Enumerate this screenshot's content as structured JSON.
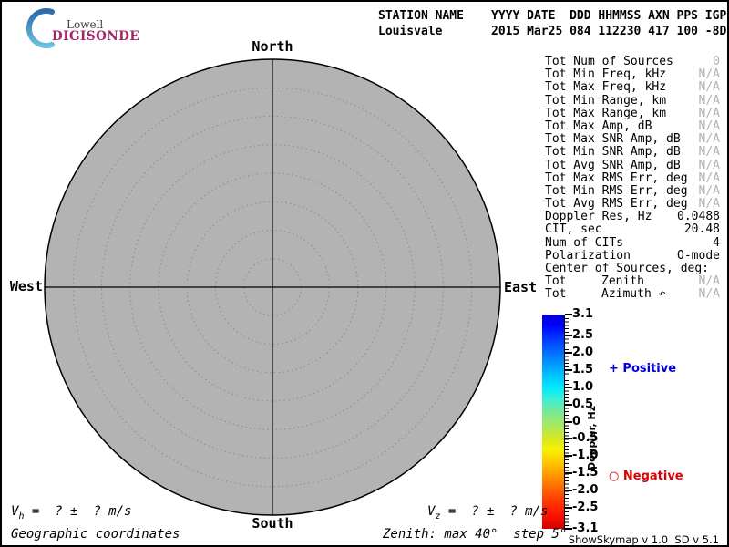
{
  "logo": {
    "line1": "Lowell",
    "line2": "DIGISONDE",
    "digisonde_color": "#a32465",
    "crescent_color_top": "#2b6cab",
    "crescent_color_bottom": "#6cc0dc"
  },
  "header": {
    "labels": {
      "station": "STATION NAME",
      "fields": "YYYY DATE  DDD HHMMSS AXN PPS IGP"
    },
    "values": {
      "station": "Louisvale",
      "fields": "2015 Mar25 084 112230 417 100 -8D"
    }
  },
  "compass": {
    "north": "North",
    "south": "South",
    "east": "East",
    "west": "West"
  },
  "plot": {
    "fill": "#b3b3b3",
    "ring_dot_color": "#8c8c8c",
    "max_zenith_deg": 40,
    "step_deg": 5,
    "num_sources": 0
  },
  "stats": {
    "rows": [
      {
        "label": "Tot Num of Sources",
        "value": "0",
        "muted": true
      },
      {
        "label": "Tot Min Freq, kHz",
        "value": "N/A",
        "muted": true
      },
      {
        "label": "Tot Max Freq, kHz",
        "value": "N/A",
        "muted": true
      },
      {
        "label": "Tot Min Range, km",
        "value": "N/A",
        "muted": true
      },
      {
        "label": "Tot Max Range, km",
        "value": "N/A",
        "muted": true
      },
      {
        "label": "Tot Max Amp, dB",
        "value": "N/A",
        "muted": true
      },
      {
        "label": "Tot Max SNR Amp, dB",
        "value": "N/A",
        "muted": true
      },
      {
        "label": "Tot Min SNR Amp, dB",
        "value": "N/A",
        "muted": true
      },
      {
        "label": "Tot Avg SNR Amp, dB",
        "value": "N/A",
        "muted": true
      },
      {
        "label": "Tot Max RMS Err, deg",
        "value": "N/A",
        "muted": true
      },
      {
        "label": "Tot Min RMS Err, deg",
        "value": "N/A",
        "muted": true
      },
      {
        "label": "Tot Avg RMS Err, deg",
        "value": "N/A",
        "muted": true
      },
      {
        "label": "Doppler Res, Hz",
        "value": "0.0488",
        "muted": false
      },
      {
        "label": "CIT, sec",
        "value": "20.48",
        "muted": false
      },
      {
        "label": "Num of CITs",
        "value": "4",
        "muted": false
      },
      {
        "label": "Polarization",
        "value": "O-mode",
        "muted": false
      },
      {
        "label": "Center of Sources, deg:",
        "value": "",
        "muted": false
      },
      {
        "label": "Tot",
        "mid": "Zenith",
        "value": "N/A",
        "muted": true
      },
      {
        "label": "Tot",
        "mid": "Azimuth ↶",
        "value": "N/A",
        "muted": true
      }
    ]
  },
  "colorbar": {
    "title": "Doppler, Hz",
    "max": 3.1,
    "min": -3.1,
    "labels": [
      "3.1",
      "2.5",
      "2.0",
      "1.5",
      "1.0",
      "0.5",
      "0",
      "-0.5",
      "-1.0",
      "-1.5",
      "-2.0",
      "-2.5",
      "-3.1"
    ],
    "gradient": [
      "#0000cd 0%",
      "#0000ff 5%",
      "#0040ff 12%",
      "#0080ff 20%",
      "#00c0ff 28%",
      "#00e8ff 34%",
      "#40f0d0 40%",
      "#7fe890 46%",
      "#a8e860 52%",
      "#d8e820 58%",
      "#f8f000 63%",
      "#ffc000 70%",
      "#ff8000 78%",
      "#ff4000 86%",
      "#ff1000 94%",
      "#cc0000 100%"
    ],
    "positive_label": "+ Positive",
    "negative_label": "○ Negative",
    "positive_color": "#0000dd",
    "negative_color": "#dd0000"
  },
  "footer": {
    "vh": {
      "sym": "V",
      "sub": "h",
      "rest": " =  ? ±  ? m/s"
    },
    "vz": {
      "sym": "V",
      "sub": "z",
      "rest": " =  ? ±  ? m/s"
    },
    "coords": "Geographic coordinates",
    "zenith_note": "Zenith: max 40°  step 5°",
    "version": "ShowSkymap v 1.0  SD v 5.1"
  }
}
